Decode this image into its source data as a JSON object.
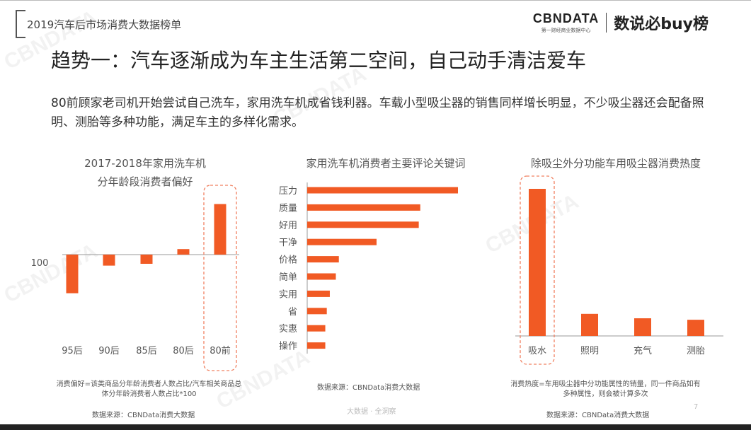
{
  "header": {
    "report_title": "2019汽车后市场消费大数据榜单",
    "brand_cbn": "CBNDATA",
    "brand_cbn_sub": "第一财经商业数据中心",
    "brand_list": "数说必buy榜"
  },
  "slide": {
    "heading": "趋势一：汽车逐渐成为车主生活第二空间，自己动手清洁爱车",
    "intro": "80前顾家老司机开始尝试自己洗车，家用洗车机成省钱利器。车载小型吸尘器的销售同样增长明显，不少吸尘器还会配备照明、测胎等多种功能，满足车主的多样化需求。"
  },
  "colors": {
    "bar": "#f15a24",
    "highlight_border": "#f08060",
    "axis": "#999999"
  },
  "charts": {
    "age": {
      "title_line1": "2017-2018年家用洗车机",
      "title_line2": "分年龄段消费者偏好",
      "baseline_label": "100",
      "note": "消费偏好=该类商品分年龄消费者人数占比/汽车相关商品总体分年龄消费者人数占比*100",
      "source": "数据来源：CBNData消费大数据"
    },
    "keywords": {
      "title": "家用洗车机消费者主要评论关键词",
      "source": "数据来源：CBNData消费大数据"
    },
    "vacuum": {
      "title": "除吸尘外分功能车用吸尘器消费热度",
      "note": "消费热度=车用吸尘器中分功能属性的销量，同一件商品如有多种属性，则会被计算多次",
      "source": "数据来源：CBNData消费大数据"
    }
  },
  "footer": {
    "watermark_text": "大数据 · 全洞察",
    "page_number": "7"
  },
  "chart_data": [
    {
      "type": "bar",
      "title": "2017-2018年家用洗车机 分年龄段消费者偏好",
      "categories": [
        "95后",
        "90后",
        "85后",
        "80后",
        "80前"
      ],
      "values": [
        58,
        88,
        90,
        106,
        155
      ],
      "baseline": 100,
      "highlight": "80前"
    },
    {
      "type": "bar",
      "orientation": "horizontal",
      "title": "家用洗车机消费者主要评论关键词",
      "categories": [
        "压力",
        "质量",
        "好用",
        "干净",
        "价格",
        "简单",
        "实用",
        "省",
        "实惠",
        "操作"
      ],
      "values": [
        100,
        75,
        74,
        46,
        21,
        19,
        15,
        13,
        12,
        12
      ]
    },
    {
      "type": "bar",
      "title": "除吸尘外分功能车用吸尘器消费热度",
      "categories": [
        "吸水",
        "照明",
        "充气",
        "测胎"
      ],
      "values": [
        100,
        15,
        12,
        11
      ],
      "highlight": "吸水"
    }
  ]
}
